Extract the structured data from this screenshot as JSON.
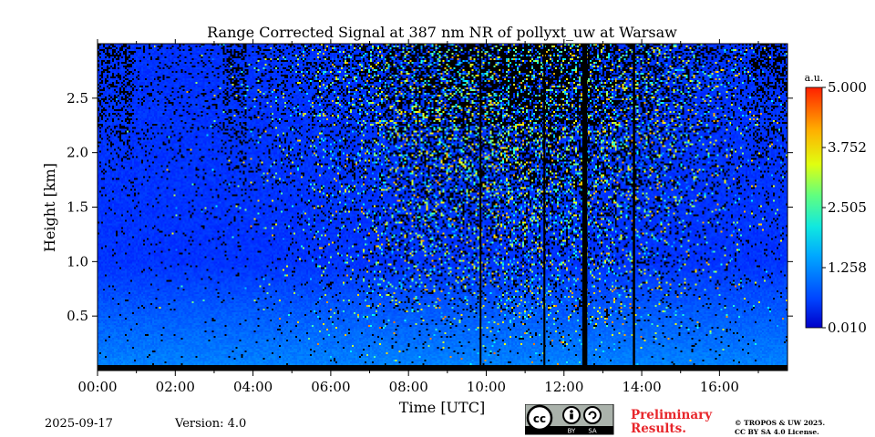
{
  "chart_data": {
    "type": "heatmap",
    "title": "Range Corrected Signal at 387 nm NR of pollyxt_uw at Warsaw",
    "xlabel": "Time [UTC]",
    "ylabel": "Height [km]",
    "x_ticks": [
      "00:00",
      "02:00",
      "04:00",
      "06:00",
      "08:00",
      "10:00",
      "12:00",
      "14:00",
      "16:00"
    ],
    "x_tick_hours": [
      0,
      2,
      4,
      6,
      8,
      10,
      12,
      14,
      16
    ],
    "xlim_hours": [
      0,
      17.75
    ],
    "y_ticks": [
      "0.5",
      "1.0",
      "1.5",
      "2.0",
      "2.5"
    ],
    "y_tick_values": [
      0.5,
      1.0,
      1.5,
      2.0,
      2.5
    ],
    "ylim_km": [
      0,
      3.0
    ],
    "colorbar": {
      "unit": "a.u.",
      "ticks": [
        "0.010",
        "1.258",
        "2.505",
        "3.752",
        "5.000"
      ],
      "tick_values": [
        0.01,
        1.258,
        2.505,
        3.752,
        5.0
      ],
      "range": [
        0.01,
        5.0
      ],
      "colormap": "jet"
    },
    "no_data_intervals_hours": [
      [
        9.83,
        9.87
      ],
      [
        11.47,
        11.52
      ],
      [
        12.47,
        12.6
      ],
      [
        13.77,
        13.83
      ]
    ]
  },
  "footer": {
    "date": "2025-09-17",
    "version": "Version: 4.0",
    "preliminary_line1": "Preliminary",
    "preliminary_line2": "Results.",
    "copyright_line1": "© TROPOS & UW 2025.",
    "copyright_line2": "CC BY SA 4.0 License."
  },
  "license_badge": {
    "icon": "cc-by-sa-icon",
    "text_by": "BY",
    "text_sa": "SA"
  },
  "colors": {
    "no_data": "#000000",
    "prelim": "#e8262b"
  }
}
